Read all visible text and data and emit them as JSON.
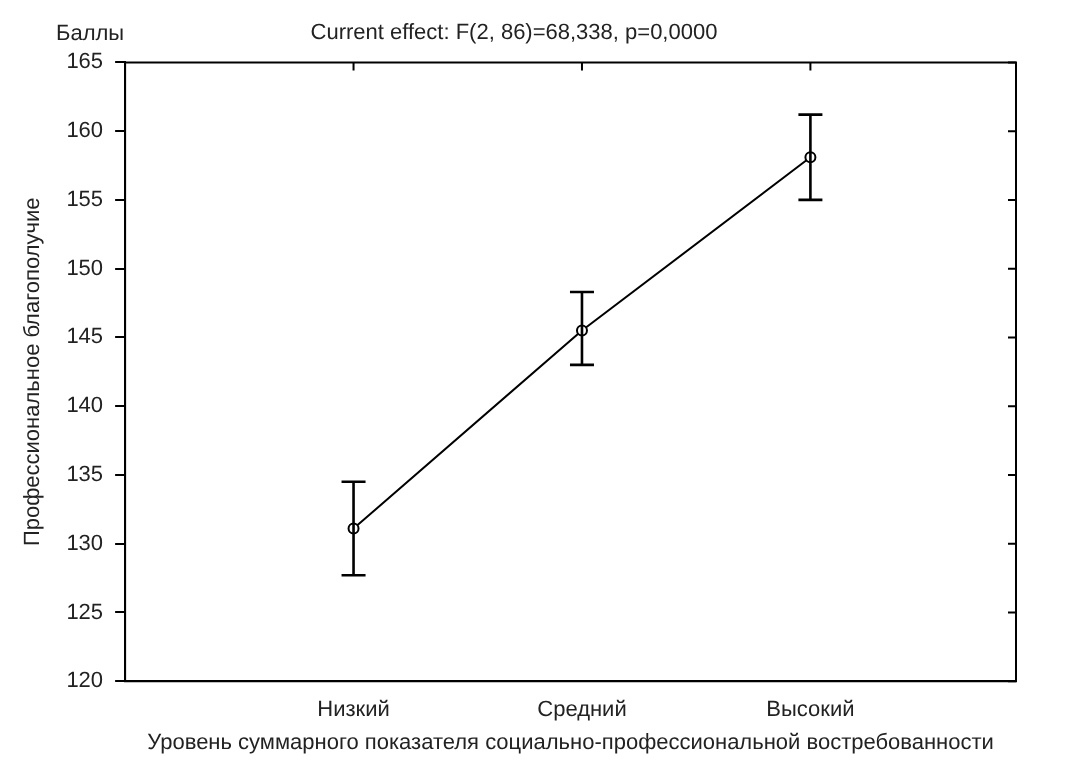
{
  "chart_data": {
    "type": "line",
    "title": "Current effect: F(2, 86)=68,338, p=0,0000",
    "xlabel": "Уровень суммарного показателя социально-профессиональной востребованности",
    "ylabel": "Профессиональное благополучие",
    "annotations": [
      "Баллы"
    ],
    "categories": [
      "Низкий",
      "Средний",
      "Высокий"
    ],
    "series": [
      {
        "color": "#000000",
        "values": [
          131.1,
          145.5,
          158.1
        ],
        "errors": [
          [
            127.7,
            134.5
          ],
          [
            143.0,
            148.3
          ],
          [
            155.0,
            161.2
          ]
        ]
      }
    ],
    "ylim": [
      120,
      165
    ],
    "yticks": [
      120,
      125,
      130,
      135,
      140,
      145,
      150,
      155,
      160,
      165
    ],
    "grid": false,
    "legend": false,
    "marker": "circle",
    "line_style": "solid"
  }
}
